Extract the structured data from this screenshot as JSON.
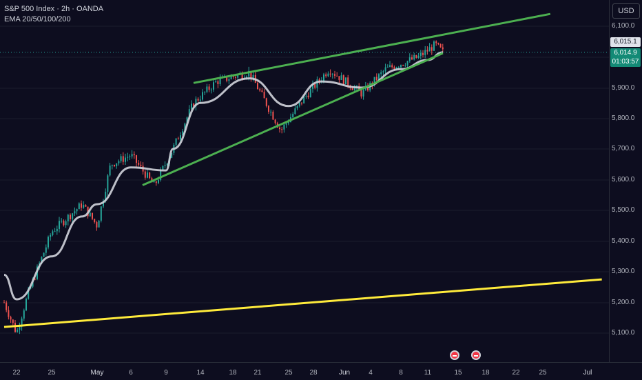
{
  "legend": {
    "symbol_line": "S&P 500 Index · 2h · OANDA",
    "indicator_line": "EMA 20/50/100/200"
  },
  "currency": "USD",
  "price_axis": {
    "ticks": [
      "6,100.0",
      "6,000.0",
      "5,900.0",
      "5,800.0",
      "5,700.0",
      "5,600.0",
      "5,500.0",
      "5,400.0",
      "5,300.0",
      "5,200.0",
      "5,100.0"
    ]
  },
  "time_axis": {
    "ticks": [
      "22",
      "25",
      "May",
      "6",
      "9",
      "14",
      "18",
      "21",
      "25",
      "28",
      "Jun",
      "4",
      "8",
      "11",
      "15",
      "18",
      "22",
      "25",
      "Jul"
    ]
  },
  "price_labels": {
    "prev_close": "6,015.1",
    "last_price": "6,014.9",
    "countdown": "01:03:57"
  },
  "colors": {
    "background": "#0d0d1f",
    "up_candle": "#26a69a",
    "down_candle": "#ef5350",
    "ema_line": "#d1d4dc",
    "wedge_lines": "#4caf50",
    "support_line": "#ffeb3b",
    "last_price_label": "#138a76"
  },
  "events": [
    "economic-event-icon",
    "economic-event-icon"
  ],
  "chart_data": {
    "type": "line",
    "title": "S&P 500 Index · 2h · OANDA",
    "ylim": [
      5080,
      6150
    ],
    "price_path_approx": [
      [
        "Apr 19",
        5200
      ],
      [
        "Apr 22",
        5100
      ],
      [
        "Apr 23",
        5230
      ],
      [
        "Apr 25",
        5430
      ],
      [
        "Apr 29",
        5520
      ],
      [
        "May 1",
        5450
      ],
      [
        "May 3",
        5650
      ],
      [
        "May 6",
        5680
      ],
      [
        "May 8",
        5580
      ],
      [
        "May 10",
        5700
      ],
      [
        "May 13",
        5850
      ],
      [
        "May 16",
        5920
      ],
      [
        "May 20",
        5950
      ],
      [
        "May 24",
        5760
      ],
      [
        "May 27",
        5870
      ],
      [
        "May 30",
        5960
      ],
      [
        "Jun 3",
        5880
      ],
      [
        "Jun 6",
        5960
      ],
      [
        "Jun 10",
        6000
      ],
      [
        "Jun 12",
        6040
      ],
      [
        "Jun 13",
        6015
      ]
    ],
    "ema_path_approx": [
      [
        "Apr 19",
        5290
      ],
      [
        "Apr 22",
        5210
      ],
      [
        "Apr 25",
        5350
      ],
      [
        "Apr 29",
        5480
      ],
      [
        "May 1",
        5520
      ],
      [
        "May 6",
        5640
      ],
      [
        "May 9",
        5630
      ],
      [
        "May 10",
        5700
      ],
      [
        "May 14",
        5850
      ],
      [
        "May 20",
        5930
      ],
      [
        "May 25",
        5840
      ],
      [
        "May 29",
        5920
      ],
      [
        "Jun 3",
        5900
      ],
      [
        "Jun 8",
        5960
      ],
      [
        "Jun 11",
        5990
      ],
      [
        "Jun 13",
        6015
      ]
    ],
    "trendlines": [
      {
        "kind": "wedge-upper",
        "from": [
          "May 13",
          5915
        ],
        "to": [
          "Jun 26",
          6140
        ]
      },
      {
        "kind": "wedge-lower",
        "from": [
          "May 7",
          5582
        ],
        "to": [
          "Jun 13",
          6012
        ]
      },
      {
        "kind": "support",
        "from": [
          "Apr 19",
          5120
        ],
        "to": [
          "Jul 3",
          5275
        ]
      }
    ],
    "last_price": 6014.9
  }
}
